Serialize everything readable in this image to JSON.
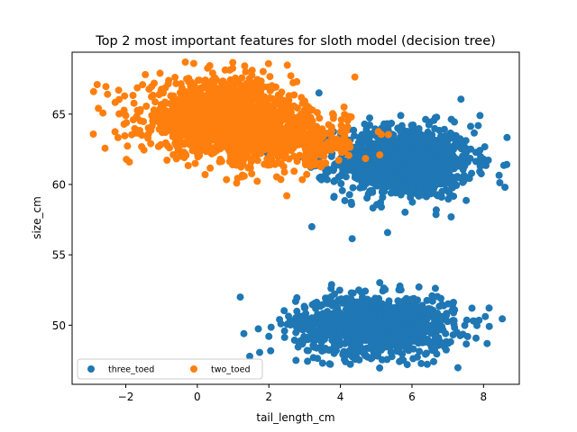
{
  "chart_data": {
    "type": "scatter",
    "title": "Top 2 most important features for sloth model (decision tree)",
    "xlabel": "tail_length_cm",
    "ylabel": "size_cm",
    "xlim": [
      -3.5,
      9.0
    ],
    "ylim": [
      45.8,
      69.4
    ],
    "xticks": [
      -2,
      0,
      2,
      4,
      6,
      8
    ],
    "xtick_labels": [
      "−2",
      "0",
      "2",
      "4",
      "6",
      "8"
    ],
    "yticks": [
      50,
      55,
      60,
      65
    ],
    "ytick_labels": [
      "50",
      "55",
      "60",
      "65"
    ],
    "grid": false,
    "legend": {
      "placement": "lower-left",
      "ncol": 2
    },
    "series": [
      {
        "name": "three_toed",
        "color": "#1f77b4",
        "clusters": [
          {
            "x_center": 5.8,
            "y_center": 61.6,
            "x_sd": 0.95,
            "y_sd": 1.3,
            "count": 1100
          },
          {
            "x_center": 5.0,
            "y_center": 50.0,
            "x_sd": 1.1,
            "y_sd": 1.05,
            "count": 1100
          }
        ],
        "points": [
          [
            1.2,
            52.0
          ],
          [
            1.3,
            49.4
          ],
          [
            2.0,
            49.2
          ],
          [
            2.3,
            50.4
          ],
          [
            3.4,
            66.5
          ],
          [
            3.2,
            57.0
          ],
          [
            8.1,
            48.7
          ],
          [
            8.6,
            59.8
          ],
          [
            7.9,
            64.9
          ],
          [
            3.5,
            47.3
          ]
        ]
      },
      {
        "name": "two_toed",
        "color": "#ff7f0e",
        "clusters": [
          {
            "x_center": 0.6,
            "y_center": 64.8,
            "x_sd": 1.05,
            "y_sd": 1.3,
            "count": 1300
          },
          {
            "x_center": 2.4,
            "y_center": 63.2,
            "x_sd": 0.9,
            "y_sd": 1.0,
            "count": 500
          }
        ],
        "points": [
          [
            -2.9,
            66.6
          ],
          [
            -2.8,
            67.1
          ],
          [
            -2.2,
            66.7
          ],
          [
            -2.0,
            64.9
          ],
          [
            4.1,
            65.5
          ],
          [
            4.2,
            64.1
          ],
          [
            2.5,
            59.2
          ],
          [
            5.1,
            62.1
          ],
          [
            1.1,
            60.1
          ],
          [
            -0.1,
            68.6
          ]
        ]
      }
    ]
  }
}
